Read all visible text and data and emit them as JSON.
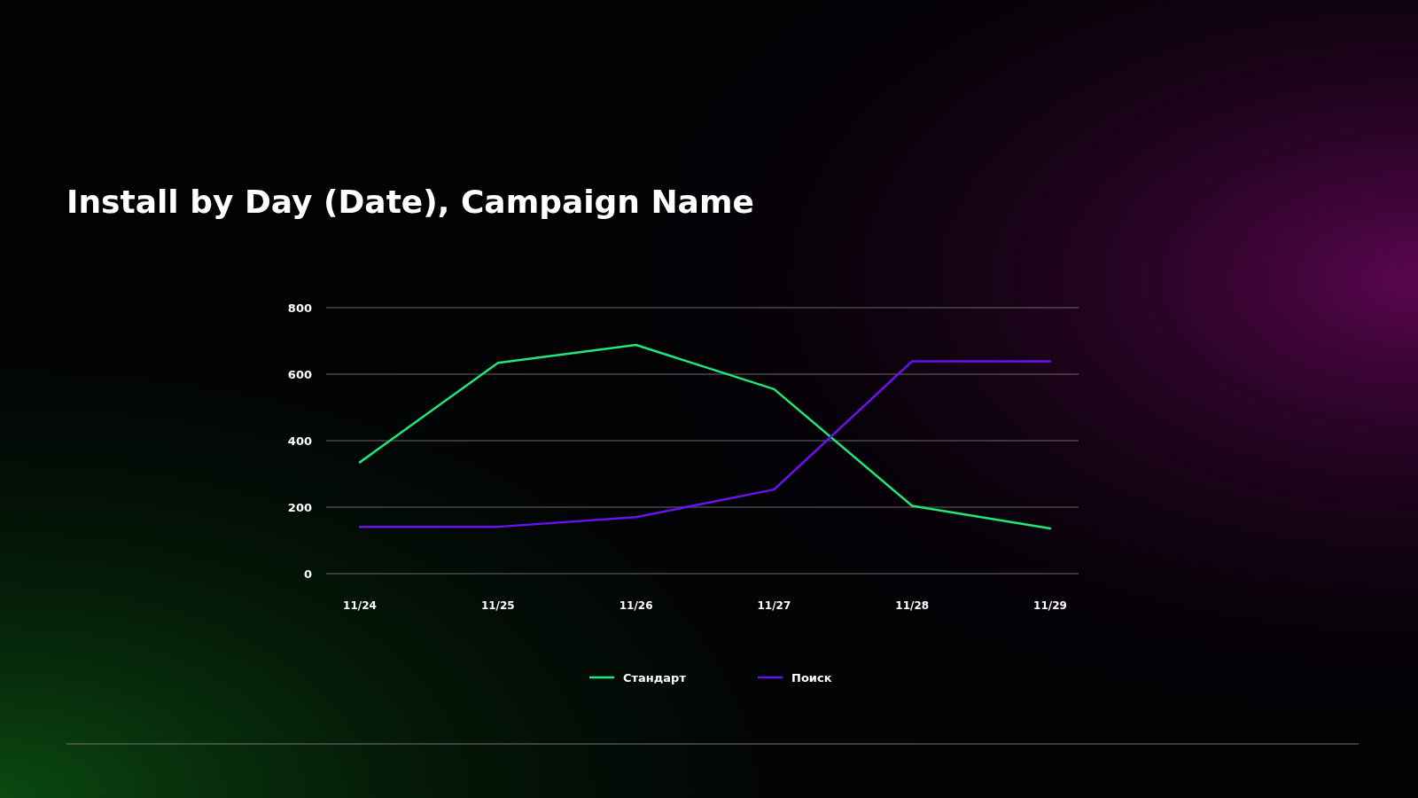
{
  "chart_data": {
    "type": "line",
    "title": "Install by Day (Date), Campaign Name",
    "categories": [
      "11/24",
      "11/25",
      "11/26",
      "11/27",
      "11/28",
      "11/29"
    ],
    "series": [
      {
        "name": "Стандарт",
        "color": "#1ee87c",
        "values": [
          335,
          634,
          688,
          555,
          204,
          136
        ]
      },
      {
        "name": "Поиск",
        "color": "#6b12f0",
        "values": [
          141,
          141,
          170,
          253,
          639,
          639
        ]
      }
    ],
    "ylim": [
      0,
      800
    ],
    "yticks": [
      0,
      200,
      400,
      600,
      800
    ],
    "grid": "y",
    "legend": "bottom",
    "marker": "none",
    "line_style": "solid"
  }
}
